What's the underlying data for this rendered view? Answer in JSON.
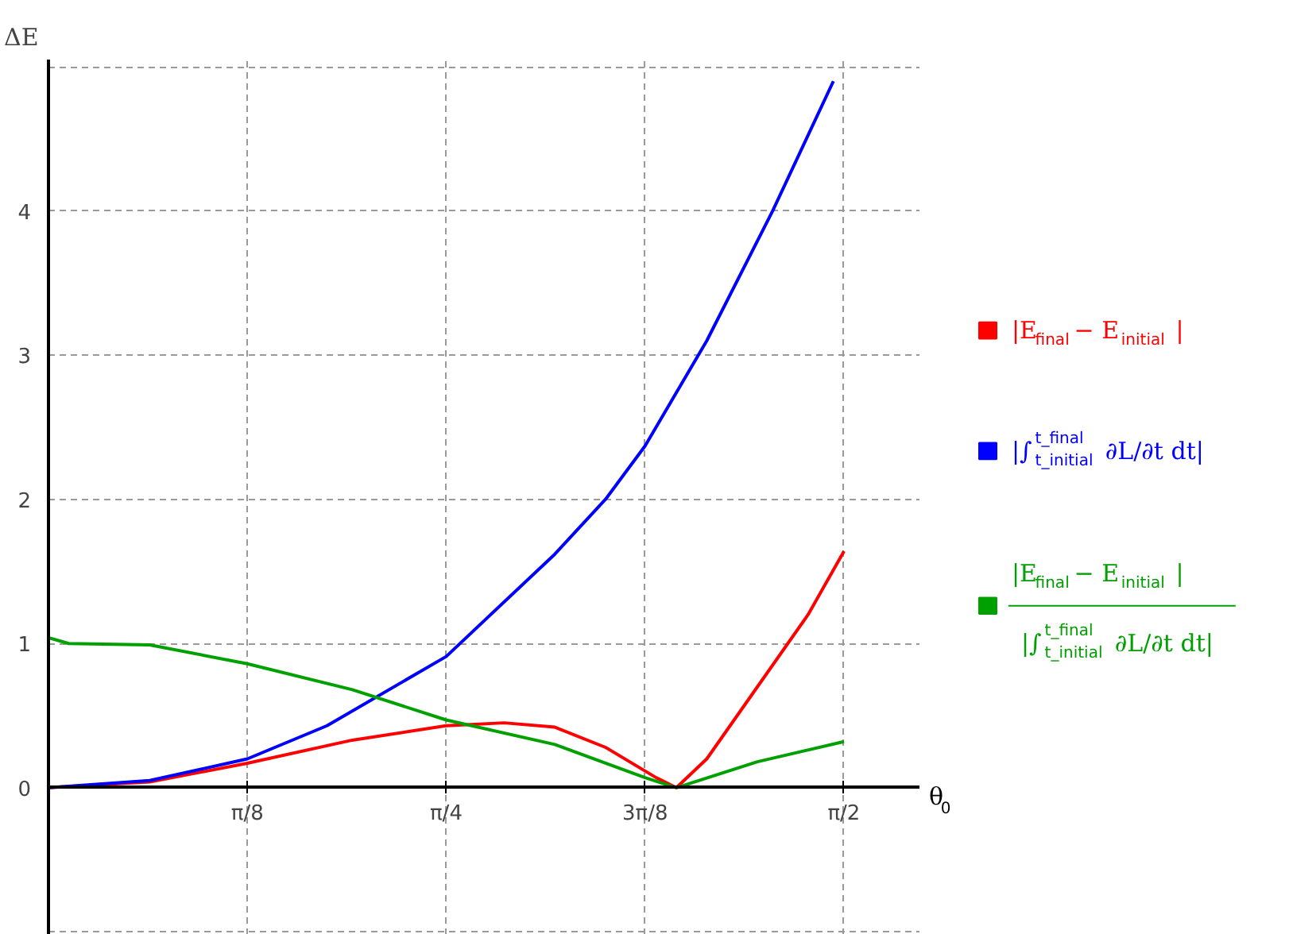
{
  "chart_data": {
    "type": "line",
    "xlabel": "θ$_{0}$",
    "ylabel": "ΔE",
    "xlim": [
      0,
      1.72
    ],
    "ylim": [
      -1.02,
      5.05
    ],
    "xticks": [
      {
        "value": 0.3927,
        "label": "π/8"
      },
      {
        "value": 0.7854,
        "label": "π/4"
      },
      {
        "value": 1.1781,
        "label": "3π/8"
      },
      {
        "value": 1.5708,
        "label": "π/2"
      }
    ],
    "yticks": [
      {
        "value": -1,
        "label": null
      },
      0,
      1,
      2,
      3,
      4,
      {
        "value": 5,
        "label": null
      }
    ],
    "grid": true,
    "legend": "right",
    "line_style": "solid",
    "series": [
      {
        "name": "|E$_{final}$ − E$_{initial}$|",
        "color": "#ff0000",
        "x": [
          0,
          0.2,
          0.3927,
          0.6,
          0.7854,
          0.9,
          1.0,
          1.1,
          1.2,
          1.24,
          1.3,
          1.4,
          1.5,
          1.571
        ],
        "values": [
          0,
          0.04,
          0.17,
          0.33,
          0.43,
          0.45,
          0.42,
          0.28,
          0.07,
          0,
          0.2,
          0.7,
          1.2,
          1.64
        ]
      },
      {
        "name": "|∫$^{t_final}$$_{t_initial}$ ∂L/∂t dt|",
        "color": "#0000ff",
        "x": [
          0,
          0.2,
          0.3927,
          0.55,
          0.7854,
          1.0,
          1.1,
          1.1781,
          1.3,
          1.43,
          1.55
        ],
        "values": [
          0,
          0.05,
          0.2,
          0.43,
          0.91,
          1.62,
          2.0,
          2.37,
          3.1,
          4.0,
          4.9
        ]
      },
      {
        "name": "|E$_{final}$ − E$_{initial}$|\n|∫$^{t_final}$$_{t_initial}$ ∂L/∂t dt|",
        "color": "#00a000",
        "x": [
          0,
          0.04,
          0.2,
          0.3927,
          0.6,
          0.7854,
          1.0,
          1.1781,
          1.24,
          1.4,
          1.571
        ],
        "values": [
          1.04,
          1.0,
          0.99,
          0.86,
          0.68,
          0.47,
          0.3,
          0.07,
          0,
          0.18,
          0.32
        ]
      }
    ]
  }
}
